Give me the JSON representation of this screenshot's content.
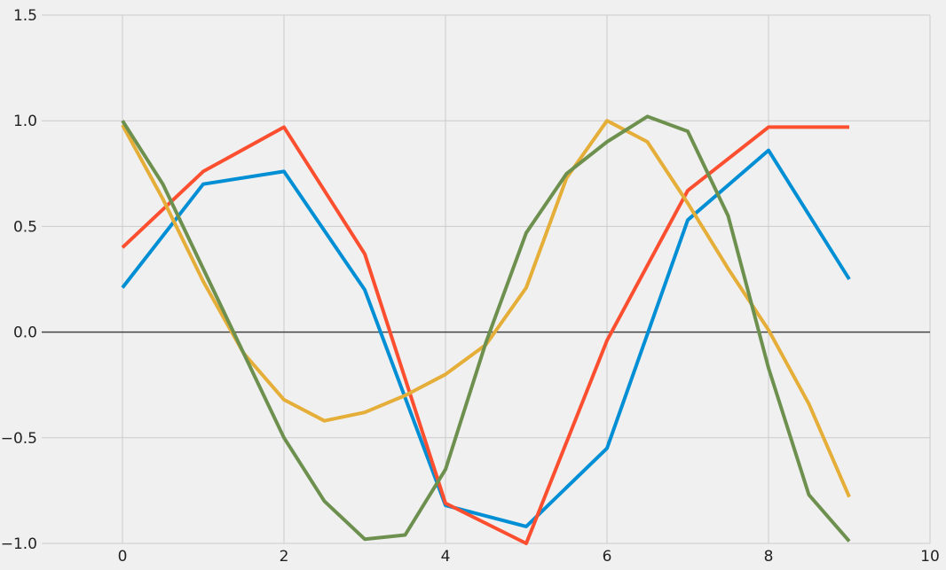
{
  "chart_data": {
    "type": "line",
    "title": "",
    "xlabel": "",
    "ylabel": "",
    "xlim": [
      -1.0,
      10.0
    ],
    "ylim": [
      -1.0,
      1.5
    ],
    "xticks": [
      0,
      2,
      4,
      6,
      8,
      10
    ],
    "yticks": [
      -1.0,
      -0.5,
      0.0,
      0.5,
      1.0,
      1.5
    ],
    "xtick_labels": [
      "0",
      "2",
      "4",
      "6",
      "8",
      "10"
    ],
    "ytick_labels": [
      "−1.0",
      "−0.5",
      "0.0",
      "0.5",
      "1.0",
      "1.5"
    ],
    "grid": true,
    "zero_line": true,
    "background": "#f0f0f0",
    "series": [
      {
        "color": "#008fd5",
        "x": [
          0,
          1,
          2,
          3,
          4,
          5,
          6,
          7,
          8,
          9
        ],
        "values": [
          0.21,
          0.7,
          0.76,
          0.2,
          -0.82,
          -0.92,
          -0.55,
          0.53,
          0.86,
          0.25
        ]
      },
      {
        "color": "#fc4f30",
        "x": [
          0,
          1,
          2,
          3,
          4,
          5,
          6,
          7,
          8,
          9
        ],
        "values": [
          0.4,
          0.76,
          0.97,
          0.37,
          -0.81,
          -1.0,
          -0.04,
          0.67,
          0.97,
          0.97
        ]
      },
      {
        "color": "#e5ae38",
        "x": [
          0,
          0.5,
          1,
          1.5,
          2,
          2.5,
          3,
          3.5,
          4,
          4.5,
          5,
          5.5,
          6,
          6.5,
          7,
          7.5,
          8,
          8.5,
          9
        ],
        "values": [
          0.98,
          0.63,
          0.24,
          -0.1,
          -0.32,
          -0.42,
          -0.38,
          -0.3,
          -0.2,
          -0.06,
          0.21,
          0.73,
          1.0,
          0.9,
          0.61,
          0.3,
          0.01,
          -0.34,
          -0.78
        ]
      },
      {
        "color": "#6d904f",
        "x": [
          0,
          0.5,
          1,
          1.5,
          2,
          2.5,
          3,
          3.5,
          4,
          4.5,
          5,
          5.5,
          6,
          6.5,
          7,
          7.5,
          8,
          8.5,
          9
        ],
        "values": [
          1.0,
          0.7,
          0.3,
          -0.1,
          -0.5,
          -0.8,
          -0.98,
          -0.96,
          -0.65,
          -0.05,
          0.47,
          0.75,
          0.9,
          1.02,
          0.95,
          0.55,
          -0.17,
          -0.77,
          -0.99
        ]
      }
    ]
  }
}
